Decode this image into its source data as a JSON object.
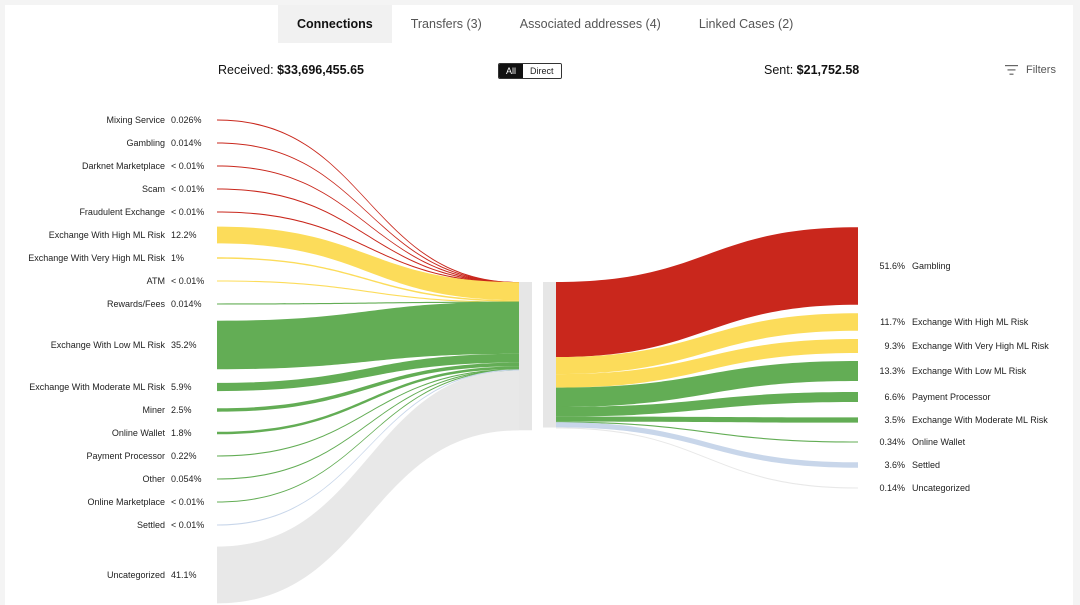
{
  "tabs": [
    {
      "label": "Connections",
      "active": true
    },
    {
      "label": "Transfers (3)",
      "active": false
    },
    {
      "label": "Associated addresses (4)",
      "active": false
    },
    {
      "label": "Linked Cases (2)",
      "active": false
    }
  ],
  "summary": {
    "received_label": "Received:",
    "received_value": "$33,696,455.65",
    "sent_label": "Sent:",
    "sent_value": "$21,752.58"
  },
  "toggle": {
    "all_label": "All",
    "direct_label": "Direct",
    "selected": "All"
  },
  "filters_label": "Filters",
  "filters_icon": "filter-lines-icon",
  "colors": {
    "high_risk": "#c9271c",
    "elevated_risk": "#fcdc5a",
    "low_risk": "#63ad55",
    "settled": "#c8d6ea",
    "uncategorized": "#e8e8e8",
    "node_bar": "#e6e6e6"
  },
  "chart_data": {
    "type": "sankey",
    "received": [
      {
        "name": "Mixing Service",
        "pct": "0.026%",
        "value": 0.026,
        "risk": "high_risk"
      },
      {
        "name": "Gambling",
        "pct": "0.014%",
        "value": 0.014,
        "risk": "high_risk"
      },
      {
        "name": "Darknet Marketplace",
        "pct": "< 0.01%",
        "value": 0.005,
        "risk": "high_risk"
      },
      {
        "name": "Scam",
        "pct": "< 0.01%",
        "value": 0.005,
        "risk": "high_risk"
      },
      {
        "name": "Fraudulent Exchange",
        "pct": "< 0.01%",
        "value": 0.005,
        "risk": "high_risk"
      },
      {
        "name": "Exchange With High ML Risk",
        "pct": "12.2%",
        "value": 12.2,
        "risk": "elevated_risk"
      },
      {
        "name": "Exchange With Very High ML Risk",
        "pct": "1%",
        "value": 1,
        "risk": "elevated_risk"
      },
      {
        "name": "ATM",
        "pct": "< 0.01%",
        "value": 0.005,
        "risk": "elevated_risk"
      },
      {
        "name": "Rewards/Fees",
        "pct": "0.014%",
        "value": 0.014,
        "risk": "low_risk"
      },
      {
        "name": "Exchange With Low ML Risk",
        "pct": "35.2%",
        "value": 35.2,
        "risk": "low_risk"
      },
      {
        "name": "Exchange With Moderate ML Risk",
        "pct": "5.9%",
        "value": 5.9,
        "risk": "low_risk"
      },
      {
        "name": "Miner",
        "pct": "2.5%",
        "value": 2.5,
        "risk": "low_risk"
      },
      {
        "name": "Online Wallet",
        "pct": "1.8%",
        "value": 1.8,
        "risk": "low_risk"
      },
      {
        "name": "Payment Processor",
        "pct": "0.22%",
        "value": 0.22,
        "risk": "low_risk"
      },
      {
        "name": "Other",
        "pct": "0.054%",
        "value": 0.054,
        "risk": "low_risk"
      },
      {
        "name": "Online Marketplace",
        "pct": "< 0.01%",
        "value": 0.005,
        "risk": "low_risk"
      },
      {
        "name": "Settled",
        "pct": "< 0.01%",
        "value": 0.005,
        "risk": "settled"
      },
      {
        "name": "Uncategorized",
        "pct": "41.1%",
        "value": 41.1,
        "risk": "uncategorized"
      }
    ],
    "sent": [
      {
        "name": "Gambling",
        "pct": "51.6%",
        "value": 51.6,
        "risk": "high_risk"
      },
      {
        "name": "Exchange With High ML Risk",
        "pct": "11.7%",
        "value": 11.7,
        "risk": "elevated_risk"
      },
      {
        "name": "Exchange With Very High ML Risk",
        "pct": "9.3%",
        "value": 9.3,
        "risk": "elevated_risk"
      },
      {
        "name": "Exchange With Low ML Risk",
        "pct": "13.3%",
        "value": 13.3,
        "risk": "low_risk"
      },
      {
        "name": "Payment Processor",
        "pct": "6.6%",
        "value": 6.6,
        "risk": "low_risk"
      },
      {
        "name": "Exchange With Moderate ML Risk",
        "pct": "3.5%",
        "value": 3.5,
        "risk": "low_risk"
      },
      {
        "name": "Online Wallet",
        "pct": "0.34%",
        "value": 0.34,
        "risk": "low_risk"
      },
      {
        "name": "Settled",
        "pct": "3.6%",
        "value": 3.6,
        "risk": "settled"
      },
      {
        "name": "Uncategorized",
        "pct": "0.14%",
        "value": 0.14,
        "risk": "uncategorized"
      }
    ]
  }
}
